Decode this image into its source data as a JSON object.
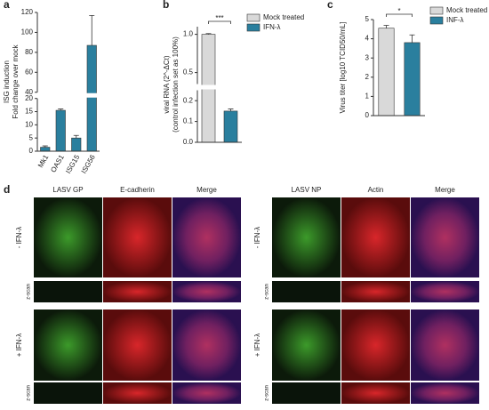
{
  "chart_data": [
    {
      "type": "bar",
      "panel_label": "a",
      "ylabel": [
        "ISG induction",
        "Fold change over mock"
      ],
      "categories": [
        "Mk1",
        "OAS1",
        "ISG15",
        "ISG56"
      ],
      "values": [
        1.5,
        15.5,
        5,
        87
      ],
      "errors": [
        0.5,
        0.5,
        1,
        30
      ],
      "color": "#2a7f9e",
      "ylim": [
        0,
        120
      ],
      "ybreak": [
        20,
        40
      ],
      "yticks": [
        0,
        5,
        10,
        15,
        20,
        40,
        60,
        80,
        100,
        120
      ]
    },
    {
      "type": "bar",
      "panel_label": "b",
      "ylabel": [
        "viral  RNA (2^-ΔCt)",
        "(control infection set as 100%)"
      ],
      "categories": [
        "Mock treated",
        "IFN-λ"
      ],
      "values": [
        1.0,
        0.15
      ],
      "errors": [
        0.01,
        0.01
      ],
      "colors": [
        "#d9d9d9",
        "#2a7f9e"
      ],
      "ylim": [
        0,
        1.1
      ],
      "ybreak": [
        0.25,
        0.35
      ],
      "yticks": [
        {
          "value": 0,
          "label": "0.0"
        },
        0.1,
        0.2,
        0.5,
        {
          "value": 1,
          "label": "1.0"
        }
      ],
      "legend": "top-right",
      "significance": "***"
    },
    {
      "type": "bar",
      "panel_label": "c",
      "ylabel": [
        "Virus titer [log10 TCID50/mL]"
      ],
      "categories": [
        "Mock treated",
        "INF-λ"
      ],
      "values": [
        4.55,
        3.8
      ],
      "errors": [
        0.15,
        0.4
      ],
      "colors": [
        "#d9d9d9",
        "#2a7f9e"
      ],
      "ylim": [
        0,
        5
      ],
      "yticks": [
        0,
        1,
        2,
        3,
        4,
        5
      ],
      "legend": "top-right",
      "significance": "*"
    }
  ],
  "panel_d": {
    "label": "d",
    "left": {
      "columns": [
        "LASV GP",
        "E-cadherin",
        "Merge"
      ]
    },
    "right": {
      "columns": [
        "LASV NP",
        "Actin",
        "Merge"
      ]
    },
    "rows": [
      "- IFN-λ",
      "+ IFN-λ"
    ],
    "zscan": "z-scan"
  }
}
